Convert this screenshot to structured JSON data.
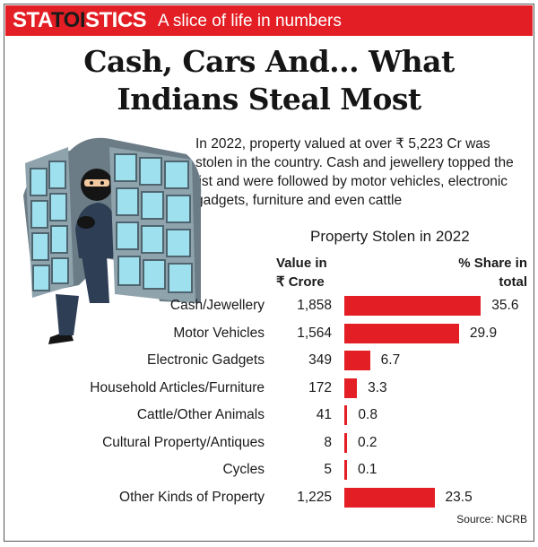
{
  "banner": {
    "brand_prefix": "STA",
    "brand_mid": "TOI",
    "brand_suffix": "STICS",
    "tagline": "A slice of life in numbers"
  },
  "headline": {
    "line1": "Cash, Cars And... What",
    "line2": "Indians Steal Most"
  },
  "intro": "In 2022, property valued at over ₹ 5,223 Cr was stolen in the country. Cash and jewellery topped the list and were followed by motor vehicles, electronic gadgets, furniture and even cattle",
  "colors": {
    "accent": "#e31e24",
    "text": "#1a1a1a"
  },
  "chart_data": {
    "type": "bar",
    "title": "Property Stolen in 2022",
    "value_header_line1": "Value in",
    "value_header_line2": "₹ Crore",
    "share_header_line1": "% Share in",
    "share_header_line2": "total",
    "categories": [
      "Cash/Jewellery",
      "Motor Vehicles",
      "Electronic Gadgets",
      "Household Articles/Furniture",
      "Cattle/Other Animals",
      "Cultural Property/Antiques",
      "Cycles",
      "Other Kinds of Property"
    ],
    "value_labels": [
      "1,858",
      "1,564",
      "349",
      "172",
      "41",
      "8",
      "5",
      "1,225"
    ],
    "values_crore": [
      1858,
      1564,
      349,
      172,
      41,
      8,
      5,
      1225
    ],
    "share_labels": [
      "35.6",
      "29.9",
      "6.7",
      "3.3",
      "0.8",
      "0.2",
      "0.1",
      "23.5"
    ],
    "share_percent": [
      35.6,
      29.9,
      6.7,
      3.3,
      0.8,
      0.2,
      0.1,
      23.5
    ],
    "orientation": "horizontal",
    "grid": false
  },
  "source": "Source: NCRB"
}
